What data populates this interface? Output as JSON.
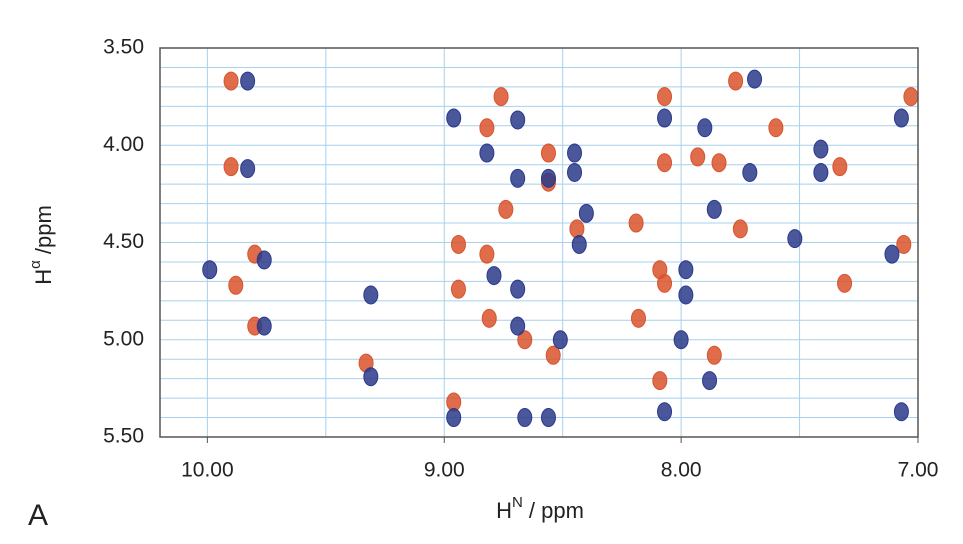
{
  "chart_data": {
    "type": "scatter",
    "panel_label": "A",
    "xlabel": [
      "H",
      "N",
      " / ppm"
    ],
    "ylabel": [
      "H",
      "α",
      " /ppm"
    ],
    "xlim": [
      10.2,
      7.0
    ],
    "ylim": [
      5.5,
      3.5
    ],
    "xticks": [
      {
        "value": 10,
        "label": "10.00"
      },
      {
        "value": 9,
        "label": "9.00"
      },
      {
        "value": 8,
        "label": "8.00"
      },
      {
        "value": 7,
        "label": "7.00"
      }
    ],
    "yticks": [
      {
        "value": 3.5,
        "label": "3.50"
      },
      {
        "value": 4,
        "label": "4.00"
      },
      {
        "value": 4.5,
        "label": "4.50"
      },
      {
        "value": 5,
        "label": "5.00"
      },
      {
        "value": 5.5,
        "label": "5.50"
      }
    ],
    "xgrid": [
      10,
      9.5,
      9,
      8.5,
      8,
      7.5
    ],
    "ygrid": [
      3.6,
      3.7,
      3.8,
      3.9,
      4.1,
      4.2,
      4.3,
      4.4,
      4.6,
      4.7,
      4.8,
      4.9,
      5.1,
      5.2,
      5.3,
      5.4
    ],
    "series": [
      {
        "color": "#d9542c",
        "x": [
          9.9,
          9.9,
          9.8,
          9.8,
          9.33,
          8.94,
          8.94,
          8.82,
          8.81,
          8.66,
          8.56,
          8.56,
          8.44,
          8.54,
          8.76,
          8.82,
          8.96,
          8.19,
          8.07,
          8.07,
          8.09,
          8.07,
          8.09,
          7.84,
          7.86,
          7.77,
          7.6,
          7.75,
          7.33,
          7.06,
          7.03,
          7.31,
          9.88,
          8.18,
          7.93,
          8.74
        ],
        "values": [
          3.67,
          4.11,
          4.56,
          4.93,
          5.12,
          4.51,
          4.74,
          4.56,
          4.89,
          5.0,
          4.04,
          4.19,
          4.43,
          5.08,
          3.75,
          3.91,
          5.32,
          4.4,
          3.75,
          4.09,
          4.64,
          4.71,
          5.21,
          4.09,
          5.08,
          3.67,
          3.91,
          4.43,
          4.11,
          4.51,
          3.75,
          4.71,
          4.72,
          4.89,
          4.06,
          4.33
        ]
      },
      {
        "color": "#2b3a8a",
        "x": [
          9.83,
          9.83,
          9.76,
          9.76,
          9.99,
          9.31,
          9.31,
          8.96,
          8.96,
          8.79,
          8.69,
          8.69,
          8.69,
          8.69,
          8.56,
          8.45,
          8.45,
          8.43,
          8.51,
          8.82,
          8.4,
          8.07,
          8.07,
          7.98,
          7.98,
          7.9,
          7.86,
          7.88,
          7.69,
          7.71,
          7.41,
          7.41,
          7.52,
          7.11,
          7.07,
          7.07,
          8.0,
          8.66,
          8.56
        ],
        "values": [
          3.67,
          4.12,
          4.59,
          4.93,
          4.64,
          5.19,
          4.77,
          5.4,
          3.86,
          4.67,
          3.87,
          4.17,
          4.74,
          4.93,
          4.17,
          4.04,
          4.14,
          4.51,
          5.0,
          4.04,
          4.35,
          3.86,
          5.37,
          4.64,
          4.77,
          3.91,
          4.33,
          5.21,
          3.66,
          4.14,
          4.02,
          4.14,
          4.48,
          4.56,
          3.86,
          5.37,
          5.0,
          5.4,
          5.4
        ]
      }
    ]
  }
}
